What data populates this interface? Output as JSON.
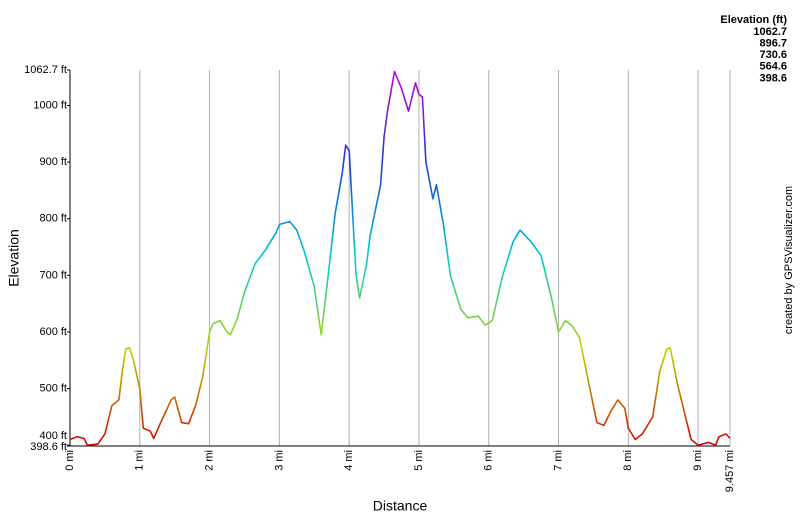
{
  "chart_data": {
    "type": "line",
    "x_label": "Distance",
    "y_label": "Elevation",
    "legend_title": "Elevation (ft)",
    "credit": "created by GPSVisualizer.com",
    "color_scale": [
      {
        "value": 1062.7,
        "color": "#cc00cc"
      },
      {
        "value": 896.7,
        "color": "#1a3fe0"
      },
      {
        "value": 730.6,
        "color": "#00cccc"
      },
      {
        "value": 564.6,
        "color": "#bcd400"
      },
      {
        "value": 398.6,
        "color": "#d40000"
      }
    ],
    "xlim": [
      0,
      9.457
    ],
    "ylim": [
      398.6,
      1062.7
    ],
    "xticks": [
      {
        "value": 0,
        "label": "0 mi"
      },
      {
        "value": 1,
        "label": "1 mi"
      },
      {
        "value": 2,
        "label": "2 mi"
      },
      {
        "value": 3,
        "label": "3 mi"
      },
      {
        "value": 4,
        "label": "4 mi"
      },
      {
        "value": 5,
        "label": "5 mi"
      },
      {
        "value": 6,
        "label": "6 mi"
      },
      {
        "value": 7,
        "label": "7 mi"
      },
      {
        "value": 8,
        "label": "8 mi"
      },
      {
        "value": 9,
        "label": "9 mi"
      },
      {
        "value": 9.457,
        "label": "9.457 mi"
      }
    ],
    "yticks": [
      {
        "value": 398.6,
        "label": "398.6 ft"
      },
      {
        "value": 400,
        "label": "400 ft"
      },
      {
        "value": 500,
        "label": "500 ft"
      },
      {
        "value": 600,
        "label": "600 ft"
      },
      {
        "value": 700,
        "label": "700 ft"
      },
      {
        "value": 800,
        "label": "800 ft"
      },
      {
        "value": 900,
        "label": "900 ft"
      },
      {
        "value": 1000,
        "label": "1000 ft"
      },
      {
        "value": 1062.7,
        "label": "1062.7 ft"
      }
    ],
    "grid": true,
    "x": [
      0,
      0.1,
      0.2,
      0.25,
      0.4,
      0.5,
      0.6,
      0.7,
      0.75,
      0.8,
      0.85,
      0.9,
      1.0,
      1.05,
      1.15,
      1.2,
      1.3,
      1.45,
      1.5,
      1.6,
      1.7,
      1.8,
      1.9,
      2.0,
      2.05,
      2.15,
      2.25,
      2.3,
      2.4,
      2.5,
      2.65,
      2.8,
      2.95,
      3.0,
      3.15,
      3.25,
      3.35,
      3.5,
      3.6,
      3.7,
      3.8,
      3.9,
      3.95,
      4.0,
      4.05,
      4.1,
      4.15,
      4.25,
      4.3,
      4.4,
      4.45,
      4.5,
      4.55,
      4.65,
      4.75,
      4.85,
      4.95,
      5.0,
      5.05,
      5.1,
      5.2,
      5.25,
      5.35,
      5.45,
      5.6,
      5.7,
      5.85,
      5.95,
      6.05,
      6.2,
      6.35,
      6.45,
      6.6,
      6.75,
      6.9,
      7.0,
      7.1,
      7.2,
      7.3,
      7.45,
      7.55,
      7.65,
      7.75,
      7.85,
      7.95,
      8.0,
      8.1,
      8.2,
      8.35,
      8.45,
      8.55,
      8.6,
      8.7,
      8.8,
      8.9,
      9.0,
      9.15,
      9.25,
      9.3,
      9.4,
      9.457
    ],
    "values": [
      410,
      415,
      412,
      400,
      402,
      420,
      470,
      480,
      530,
      570,
      572,
      555,
      500,
      430,
      425,
      412,
      440,
      480,
      485,
      440,
      438,
      470,
      520,
      600,
      615,
      620,
      600,
      595,
      625,
      670,
      720,
      745,
      775,
      790,
      795,
      780,
      745,
      680,
      595,
      700,
      810,
      880,
      930,
      920,
      810,
      700,
      660,
      720,
      770,
      830,
      860,
      945,
      990,
      1060,
      1030,
      990,
      1040,
      1020,
      1015,
      900,
      835,
      860,
      790,
      700,
      640,
      625,
      628,
      612,
      620,
      700,
      760,
      780,
      760,
      735,
      660,
      600,
      620,
      610,
      590,
      500,
      440,
      435,
      460,
      480,
      465,
      430,
      410,
      420,
      450,
      530,
      570,
      572,
      510,
      460,
      410,
      400,
      405,
      400,
      415,
      420,
      412
    ]
  }
}
